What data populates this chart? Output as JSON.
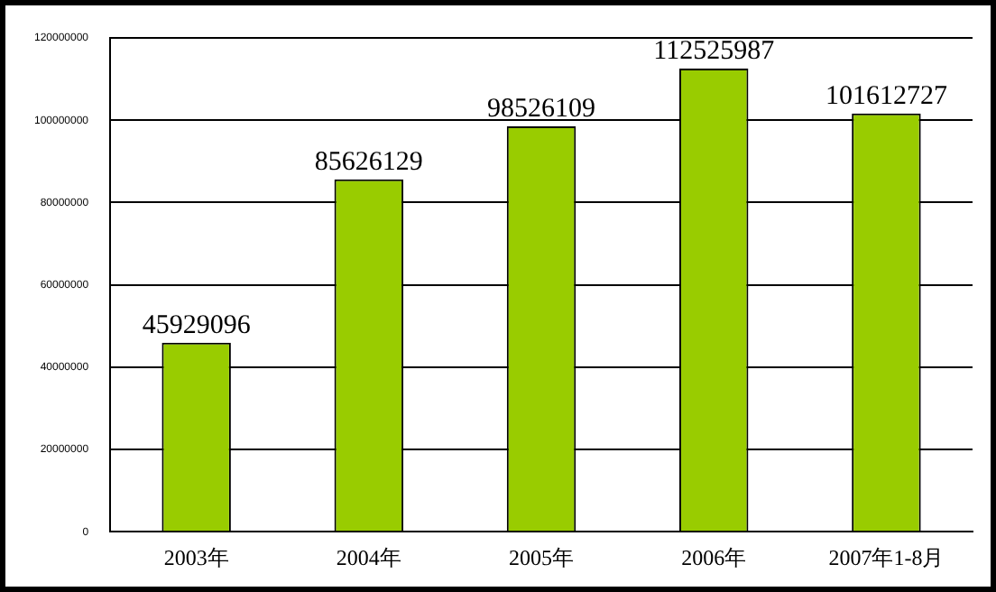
{
  "chart_data": {
    "type": "bar",
    "categories": [
      "2003年",
      "2004年",
      "2005年",
      "2006年",
      "2007年1-8月"
    ],
    "values": [
      45929096,
      85626129,
      98526109,
      112525987,
      101612727
    ],
    "color": "#99cc00",
    "ylim": [
      0,
      120000000
    ],
    "yticks": [
      0,
      20000000,
      40000000,
      60000000,
      80000000,
      100000000,
      120000000
    ],
    "grid": "y",
    "data_labels": true
  }
}
